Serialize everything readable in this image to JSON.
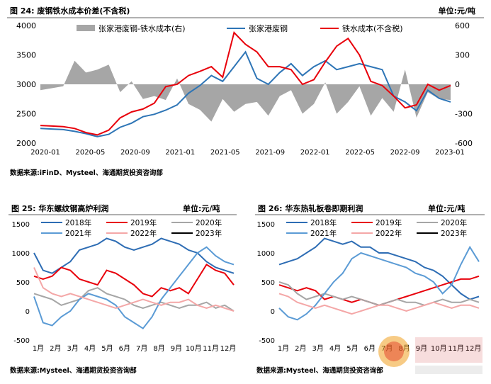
{
  "chart_data": [
    {
      "type": "line",
      "header_left": "图 24:  废钢铁水成本价差(不含税)",
      "header_right": "单位:元/吨",
      "source": "数据来源:iFinD、Mysteel、海通期货投资咨询部",
      "x_tick_labels": [
        "2020-01",
        "2020-05",
        "2020-09",
        "2021-01",
        "2021-05",
        "2021-09",
        "2022-01",
        "2022-05",
        "2022-09",
        "2023-01"
      ],
      "ylim": [
        2000,
        4000
      ],
      "y_ticks": [
        2000,
        2500,
        3000,
        3500,
        4000
      ],
      "y2lim": [
        -600,
        600
      ],
      "y2_ticks": [
        -600,
        -300,
        0,
        300,
        600
      ],
      "series": [
        {
          "name": "张家港废钢-铁水成本(右)",
          "type": "area",
          "axis": "right",
          "color": "#a6a6a6",
          "values": [
            -60,
            -40,
            -20,
            240,
            120,
            150,
            200,
            -80,
            30,
            -150,
            -120,
            -160,
            60,
            -200,
            -260,
            -380,
            -150,
            -280,
            -200,
            -180,
            -320,
            -120,
            -60,
            -300,
            -200,
            20,
            -300,
            -180,
            -20,
            -320,
            -140,
            -280,
            150,
            -340,
            -80,
            -150,
            -160
          ]
        },
        {
          "name": "张家港废钢",
          "axis": "left",
          "color": "#2e75b6",
          "values": [
            2250,
            2240,
            2230,
            2200,
            2160,
            2110,
            2150,
            2270,
            2340,
            2450,
            2490,
            2560,
            2650,
            2850,
            2980,
            3150,
            3050,
            3300,
            3550,
            3100,
            3000,
            3200,
            3350,
            3150,
            3300,
            3400,
            3250,
            3300,
            3350,
            3300,
            3250,
            2800,
            2700,
            2550,
            2900,
            2760,
            2700
          ]
        },
        {
          "name": "铁水成本(不含税)",
          "axis": "left",
          "color": "#e8000b",
          "values": [
            2300,
            2290,
            2280,
            2250,
            2180,
            2140,
            2220,
            2430,
            2530,
            2580,
            2680,
            2960,
            3000,
            3150,
            3220,
            3300,
            3120,
            3880,
            3680,
            3550,
            3300,
            3300,
            3250,
            3000,
            3080,
            3380,
            3650,
            3780,
            3500,
            3050,
            2980,
            2800,
            2600,
            2650,
            3000,
            2900,
            2980
          ]
        }
      ]
    },
    {
      "type": "line",
      "header_left": "图 25:  华东螺纹钢高炉利润",
      "header_right": "单位:元/吨",
      "source": "数据来源:Mysteel、海通期货投资咨询部",
      "x_tick_labels": [
        "1月",
        "2月",
        "3月",
        "4月",
        "5月",
        "6月",
        "7月",
        "8月",
        "9月",
        "10月",
        "11月",
        "12月"
      ],
      "ylim": [
        -500,
        1500
      ],
      "y_ticks": [
        -500,
        0,
        500,
        1000,
        1500
      ],
      "series": [
        {
          "name": "2018年",
          "color": "#2e6db4",
          "values": [
            1000,
            700,
            650,
            750,
            850,
            1050,
            1100,
            1150,
            1250,
            1200,
            1100,
            1050,
            1100,
            1150,
            1250,
            1200,
            1150,
            1050,
            1000,
            850,
            750,
            700,
            650
          ]
        },
        {
          "name": "2019年",
          "color": "#e8000b",
          "values": [
            600,
            550,
            600,
            750,
            700,
            550,
            500,
            450,
            700,
            650,
            550,
            450,
            300,
            250,
            400,
            350,
            400,
            300,
            550,
            800,
            700,
            650,
            450
          ]
        },
        {
          "name": "2020年",
          "color": "#a6a6a6",
          "values": [
            300,
            250,
            200,
            100,
            150,
            200,
            350,
            400,
            300,
            250,
            200,
            100,
            50,
            100,
            150,
            100,
            50,
            100,
            100,
            150,
            50,
            100,
            0
          ]
        },
        {
          "name": "2021年",
          "color": "#5b9bd5",
          "values": [
            250,
            -200,
            -250,
            -100,
            0,
            200,
            300,
            250,
            200,
            100,
            -100,
            -200,
            -300,
            -100,
            200,
            400,
            600,
            800,
            1000,
            1100,
            950,
            850,
            800
          ]
        },
        {
          "name": "2022年",
          "color": "#f4a7a7",
          "values": [
            750,
            400,
            300,
            250,
            300,
            250,
            200,
            150,
            100,
            50,
            100,
            150,
            200,
            150,
            100,
            150,
            150,
            200,
            100,
            50,
            100,
            50,
            0
          ]
        },
        {
          "name": "2023年",
          "color": "#000000",
          "values": []
        }
      ]
    },
    {
      "type": "line",
      "header_left": "图 26:  华东热轧板卷即期利润",
      "header_right": "单位:元/吨",
      "source": "数据来源:Mysteel、海通期货投资咨询部",
      "x_tick_labels": [
        "1月",
        "2月",
        "3月",
        "4月",
        "5月",
        "6月",
        "7月",
        "8月",
        "9月",
        "10月",
        "11月",
        "12月"
      ],
      "ylim": [
        -500,
        1500
      ],
      "y_ticks": [
        -500,
        0,
        500,
        1000,
        1500
      ],
      "series": [
        {
          "name": "2018年",
          "color": "#2e6db4",
          "values": [
            800,
            850,
            900,
            1000,
            1100,
            1250,
            1200,
            1150,
            1200,
            1100,
            1100,
            1000,
            1000,
            950,
            900,
            850,
            750,
            700,
            600,
            450,
            300,
            200,
            250
          ]
        },
        {
          "name": "2019年",
          "color": "#e8000b",
          "values": [
            450,
            400,
            350,
            400,
            350,
            200,
            250,
            200,
            150,
            200,
            150,
            100,
            150,
            200,
            250,
            300,
            350,
            400,
            450,
            500,
            550,
            550,
            600
          ]
        },
        {
          "name": "2020年",
          "color": "#a6a6a6",
          "values": [
            500,
            450,
            300,
            200,
            250,
            300,
            250,
            200,
            250,
            200,
            150,
            100,
            150,
            200,
            150,
            150,
            100,
            150,
            200,
            150,
            150,
            200,
            150
          ]
        },
        {
          "name": "2021年",
          "color": "#5b9bd5",
          "values": [
            50,
            -100,
            -150,
            -50,
            100,
            300,
            500,
            650,
            900,
            1000,
            950,
            900,
            850,
            800,
            750,
            650,
            600,
            500,
            300,
            450,
            800,
            1100,
            850
          ]
        },
        {
          "name": "2022年",
          "color": "#f4a7a7",
          "values": [
            300,
            250,
            150,
            100,
            50,
            100,
            50,
            0,
            -50,
            0,
            50,
            100,
            100,
            50,
            0,
            50,
            100,
            150,
            100,
            50,
            100,
            100,
            50
          ]
        },
        {
          "name": "2023年",
          "color": "#000000",
          "values": []
        }
      ]
    }
  ]
}
